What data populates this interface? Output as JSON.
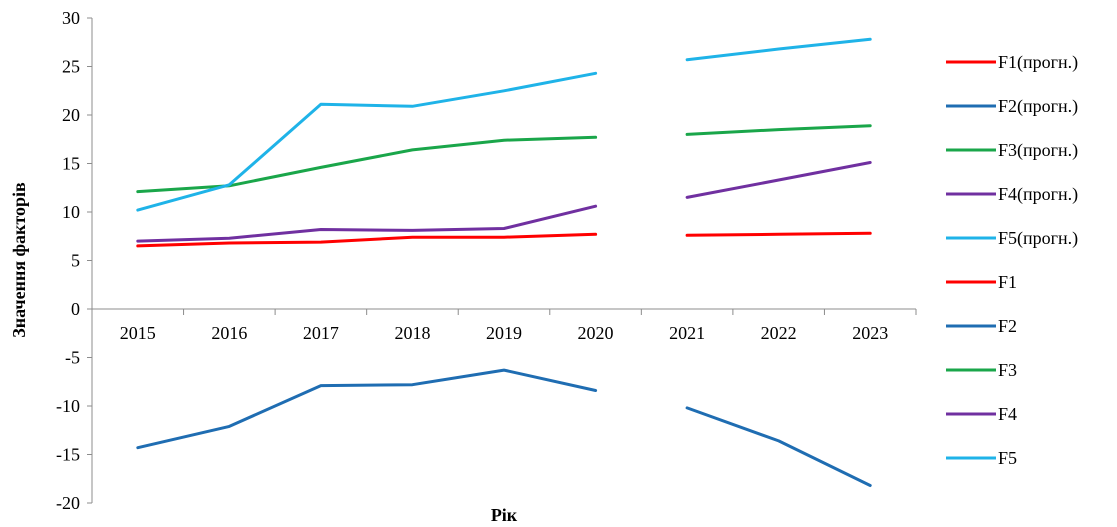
{
  "chart_data": {
    "type": "line",
    "title": "",
    "xlabel": "Рік",
    "ylabel": "Значення факторів",
    "ylim": [
      -20,
      30
    ],
    "yticks": [
      "30",
      "25",
      "20",
      "15",
      "10",
      "5",
      "0",
      "-5",
      "-10",
      "-15",
      "-20"
    ],
    "ytick_values": [
      30,
      25,
      20,
      15,
      10,
      5,
      0,
      -5,
      -10,
      -15,
      -20
    ],
    "categories": [
      "2015",
      "2016",
      "2017",
      "2018",
      "2019",
      "2020",
      "2021",
      "2022",
      "2023"
    ],
    "grid": false,
    "legend_position": "right",
    "series": [
      {
        "name": "F1(прогн.)",
        "color": "#ff0000",
        "values": [
          null,
          null,
          null,
          null,
          null,
          null,
          7.6,
          7.7,
          7.8
        ]
      },
      {
        "name": "F2(прогн.)",
        "color": "#1f6db2",
        "values": [
          null,
          null,
          null,
          null,
          null,
          null,
          -10.2,
          -13.6,
          -18.2
        ]
      },
      {
        "name": "F3(прогн.)",
        "color": "#1aa64a",
        "values": [
          null,
          null,
          null,
          null,
          null,
          null,
          18.0,
          18.5,
          18.9
        ]
      },
      {
        "name": "F4(прогн.)",
        "color": "#7030a0",
        "values": [
          null,
          null,
          null,
          null,
          null,
          null,
          11.5,
          13.3,
          15.1
        ]
      },
      {
        "name": "F5(прогн.)",
        "color": "#1fb3e8",
        "values": [
          null,
          null,
          null,
          null,
          null,
          null,
          25.7,
          26.8,
          27.8
        ]
      },
      {
        "name": "F1",
        "color": "#ff0000",
        "values": [
          6.5,
          6.8,
          6.9,
          7.4,
          7.4,
          7.7,
          null,
          null,
          null
        ]
      },
      {
        "name": "F2",
        "color": "#1f6db2",
        "values": [
          -14.3,
          -12.1,
          -7.9,
          -7.8,
          -6.3,
          -8.4,
          null,
          null,
          null
        ]
      },
      {
        "name": "F3",
        "color": "#1aa64a",
        "values": [
          12.1,
          12.7,
          14.6,
          16.4,
          17.4,
          17.7,
          null,
          null,
          null
        ]
      },
      {
        "name": "F4",
        "color": "#7030a0",
        "values": [
          7.0,
          7.3,
          8.2,
          8.1,
          8.3,
          10.6,
          null,
          null,
          null
        ]
      },
      {
        "name": "F5",
        "color": "#1fb3e8",
        "values": [
          10.2,
          12.8,
          21.1,
          20.9,
          22.5,
          24.3,
          null,
          null,
          null
        ]
      }
    ]
  }
}
